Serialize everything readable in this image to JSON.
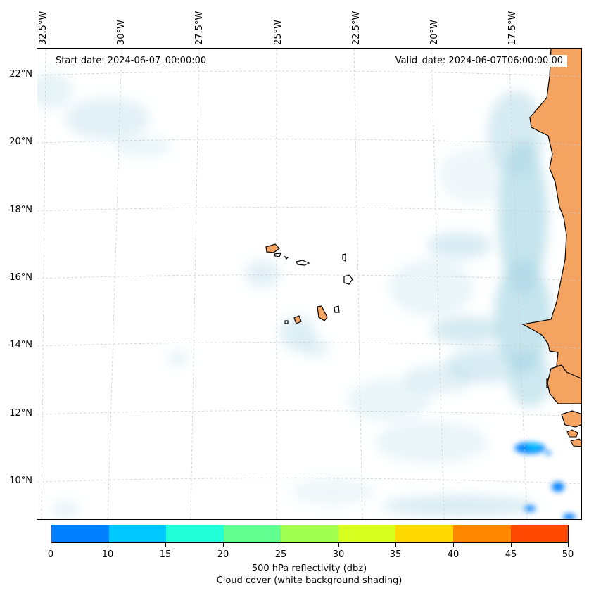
{
  "map": {
    "start_date": "Start date: 2024-06-07_00:00:00",
    "valid_date": "Valid_date: 2024-06-07T06:00:00.00",
    "longitude_labels": [
      "32.5°W",
      "30°W",
      "27.5°W",
      "25°W",
      "22.5°W",
      "20°W",
      "17.5°W"
    ],
    "latitude_labels": [
      "22°N",
      "20°N",
      "18°N",
      "16°N",
      "14°N",
      "12°N",
      "10°N"
    ],
    "gridlines": "dashed",
    "land_color": "#F4A460",
    "cloud_color": "#ADD8E6"
  },
  "colorbar": {
    "ticks": [
      "0",
      "10",
      "15",
      "20",
      "25",
      "30",
      "35",
      "40",
      "45",
      "50"
    ],
    "colors": [
      "#0080FF",
      "#00C8FF",
      "#20FFD8",
      "#60FF90",
      "#A0FF50",
      "#D8FF20",
      "#FFD800",
      "#FF8800",
      "#FF4800"
    ],
    "label": "500 hPa reflectivity (dbz)",
    "sublabel": "Cloud cover (white background shading)"
  }
}
